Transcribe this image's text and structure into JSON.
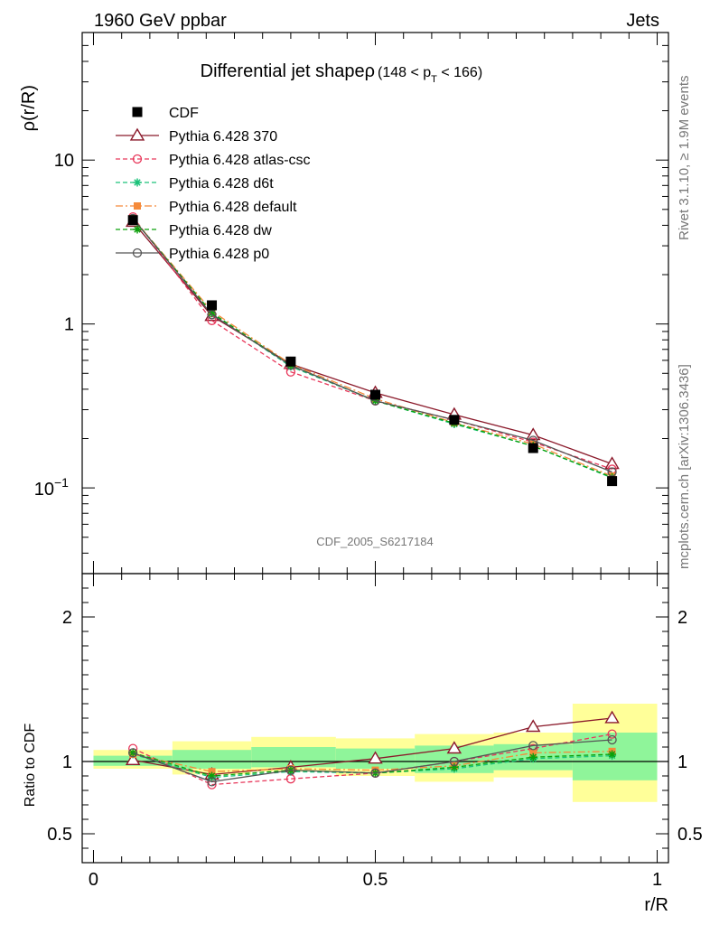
{
  "header": {
    "left": "1960 GeV ppbar",
    "right": "Jets"
  },
  "side_labels": {
    "rivet": "Rivet 3.1.10, ≥ 1.9M events",
    "mcplots": "mcplots.cern.ch [arXiv:1306.3436]"
  },
  "watermark": "CDF_2005_S6217184",
  "colors": {
    "CDF": "#000000",
    "p370": "#8b1a2b",
    "atlas": "#e8375a",
    "d6t": "#1cc27a",
    "default": "#f58a3a",
    "dw": "#0ba10b",
    "p0": "#555555",
    "band_outer": "#ffff99",
    "band_inner": "#8ff59a"
  },
  "chart_data": [
    {
      "type": "line",
      "title": "Differential jet shapeρ",
      "title_range": "(148 < p",
      "title_sub": "T",
      "title_range_end": " < 166)",
      "ylabel": "ρ(r/R)",
      "yscale": "log",
      "ylim": [
        0.03,
        60
      ],
      "ytick_labels": [
        "10",
        "1"
      ],
      "ytick_minus1_base": "10",
      "ytick_minus1_exp": "−1",
      "x": [
        0.07,
        0.21,
        0.35,
        0.5,
        0.64,
        0.78,
        0.92
      ],
      "series": [
        {
          "name": "CDF",
          "key": "CDF",
          "marker": "square",
          "values": [
            4.3,
            1.3,
            0.59,
            0.37,
            0.26,
            0.175,
            0.11
          ]
        },
        {
          "name": "Pythia 6.428 370",
          "key": "p370",
          "marker": "triangle",
          "dash": "",
          "values": [
            4.2,
            1.12,
            0.57,
            0.38,
            0.28,
            0.21,
            0.14
          ]
        },
        {
          "name": "Pythia 6.428 atlas-csc",
          "key": "atlas",
          "marker": "circle",
          "dash": "5,3",
          "values": [
            4.5,
            1.05,
            0.51,
            0.34,
            0.26,
            0.19,
            0.13
          ]
        },
        {
          "name": "Pythia 6.428 d6t",
          "key": "d6t",
          "marker": "star",
          "dash": "5,3",
          "values": [
            4.4,
            1.16,
            0.55,
            0.34,
            0.245,
            0.18,
            0.115
          ]
        },
        {
          "name": "Pythia 6.428 default",
          "key": "default",
          "marker": "fsquare",
          "dash": "8,3,2,3",
          "values": [
            4.4,
            1.2,
            0.57,
            0.35,
            0.25,
            0.185,
            0.118
          ]
        },
        {
          "name": "Pythia 6.428 dw",
          "key": "dw",
          "marker": "star",
          "dash": "5,3",
          "values": [
            4.4,
            1.17,
            0.56,
            0.34,
            0.248,
            0.18,
            0.116
          ]
        },
        {
          "name": "Pythia 6.428 p0",
          "key": "p0",
          "marker": "circle",
          "dash": "",
          "values": [
            4.4,
            1.14,
            0.56,
            0.34,
            0.26,
            0.195,
            0.125
          ]
        }
      ]
    },
    {
      "type": "line",
      "ylabel": "Ratio to CDF",
      "xlabel": "r/R",
      "xlim": [
        -0.02,
        1.02
      ],
      "ylim": [
        0.3,
        2.3
      ],
      "ytick_values": [
        0.5,
        1,
        2
      ],
      "ytick_labels": [
        "0.5",
        "1",
        "2"
      ],
      "xtick_values": [
        0,
        0.5,
        1
      ],
      "xtick_labels": [
        "0",
        "0.5",
        "1"
      ],
      "bands": [
        {
          "x0": 0.0,
          "x1": 0.14,
          "outer": [
            0.95,
            1.08
          ],
          "inner": [
            0.97,
            1.04
          ]
        },
        {
          "x0": 0.14,
          "x1": 0.28,
          "outer": [
            0.91,
            1.14
          ],
          "inner": [
            0.95,
            1.08
          ]
        },
        {
          "x0": 0.28,
          "x1": 0.43,
          "outer": [
            0.93,
            1.17
          ],
          "inner": [
            0.96,
            1.1
          ]
        },
        {
          "x0": 0.43,
          "x1": 0.57,
          "outer": [
            0.9,
            1.16
          ],
          "inner": [
            0.95,
            1.09
          ]
        },
        {
          "x0": 0.57,
          "x1": 0.71,
          "outer": [
            0.86,
            1.19
          ],
          "inner": [
            0.92,
            1.11
          ]
        },
        {
          "x0": 0.71,
          "x1": 0.85,
          "outer": [
            0.89,
            1.2
          ],
          "inner": [
            0.94,
            1.12
          ]
        },
        {
          "x0": 0.85,
          "x1": 1.0,
          "outer": [
            0.72,
            1.4
          ],
          "inner": [
            0.87,
            1.2
          ]
        }
      ],
      "x": [
        0.07,
        0.21,
        0.35,
        0.5,
        0.64,
        0.78,
        0.92
      ],
      "series": [
        {
          "name": "Pythia 6.428 370",
          "key": "p370",
          "marker": "triangle",
          "dash": "",
          "values": [
            1.01,
            0.91,
            0.96,
            1.02,
            1.09,
            1.24,
            1.3
          ]
        },
        {
          "name": "Pythia 6.428 atlas-csc",
          "key": "atlas",
          "marker": "circle",
          "dash": "5,3",
          "values": [
            1.09,
            0.84,
            0.88,
            0.92,
            1.0,
            1.09,
            1.19
          ]
        },
        {
          "name": "Pythia 6.428 d6t",
          "key": "d6t",
          "marker": "star",
          "dash": "5,3",
          "values": [
            1.05,
            0.89,
            0.93,
            0.92,
            0.95,
            1.02,
            1.04
          ]
        },
        {
          "name": "Pythia 6.428 default",
          "key": "default",
          "marker": "fsquare",
          "dash": "8,3,2,3",
          "values": [
            1.05,
            0.93,
            0.95,
            0.94,
            0.97,
            1.06,
            1.07
          ]
        },
        {
          "name": "Pythia 6.428 dw",
          "key": "dw",
          "marker": "star",
          "dash": "5,3",
          "values": [
            1.06,
            0.9,
            0.94,
            0.92,
            0.96,
            1.03,
            1.05
          ]
        },
        {
          "name": "Pythia 6.428 p0",
          "key": "p0",
          "marker": "circle",
          "dash": "",
          "values": [
            1.06,
            0.86,
            0.94,
            0.92,
            1.0,
            1.11,
            1.15
          ]
        }
      ]
    }
  ]
}
